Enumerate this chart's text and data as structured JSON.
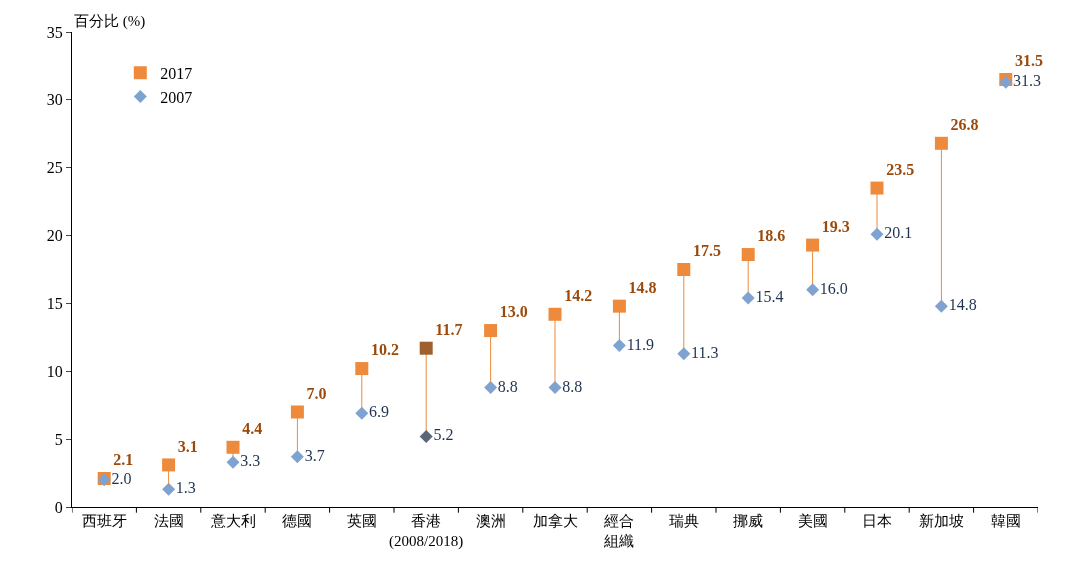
{
  "chart_data": {
    "type": "scatter",
    "ylabel": "百分比 (%)",
    "categories": [
      "西班牙",
      "法國",
      "意大利",
      "德國",
      "英國",
      "香港\n(2008/2018)",
      "澳洲",
      "加拿大",
      "經合組織",
      "瑞典",
      "挪威",
      "美國",
      "日本",
      "新加坡",
      "韓國"
    ],
    "series": [
      {
        "name": "2017",
        "color": "#ed8a3c",
        "colors": [
          "#ed8a3c",
          "#ed8a3c",
          "#ed8a3c",
          "#ed8a3c",
          "#ed8a3c",
          "#a0602e",
          "#ed8a3c",
          "#ed8a3c",
          "#ed8a3c",
          "#ed8a3c",
          "#ed8a3c",
          "#ed8a3c",
          "#ed8a3c",
          "#ed8a3c",
          "#ed8a3c"
        ],
        "marker": "square",
        "values": [
          2.1,
          3.1,
          4.4,
          7.0,
          10.2,
          11.7,
          13.0,
          14.2,
          14.8,
          17.5,
          18.6,
          19.3,
          23.5,
          26.8,
          31.5
        ],
        "value_labels": [
          "2.1",
          "3.1",
          "4.4",
          "7.0",
          "10.2",
          "11.7",
          "13.0",
          "14.2",
          "14.8",
          "17.5",
          "18.6",
          "19.3",
          "23.5",
          "26.8",
          "31.5"
        ]
      },
      {
        "name": "2007",
        "color": "#7fa3d0",
        "colors": [
          "#7fa3d0",
          "#7fa3d0",
          "#7fa3d0",
          "#7fa3d0",
          "#7fa3d0",
          "#5a6578",
          "#7fa3d0",
          "#7fa3d0",
          "#7fa3d0",
          "#7fa3d0",
          "#7fa3d0",
          "#7fa3d0",
          "#7fa3d0",
          "#7fa3d0",
          "#7fa3d0"
        ],
        "marker": "diamond",
        "values": [
          2.0,
          1.3,
          3.3,
          3.7,
          6.9,
          5.2,
          8.8,
          8.8,
          11.9,
          11.3,
          15.4,
          16.0,
          20.1,
          14.8,
          31.3
        ],
        "value_labels": [
          "2.0",
          "1.3",
          "3.3",
          "3.7",
          "6.9",
          "5.2",
          "8.8",
          "8.8",
          "11.9",
          "11.3",
          "15.4",
          "16.0",
          "20.1",
          "14.8",
          "31.3"
        ]
      }
    ],
    "ylim": [
      0,
      35
    ],
    "yticks": [
      0,
      5,
      10,
      15,
      20,
      25,
      30,
      35
    ],
    "grid": false,
    "legend": "top left"
  }
}
